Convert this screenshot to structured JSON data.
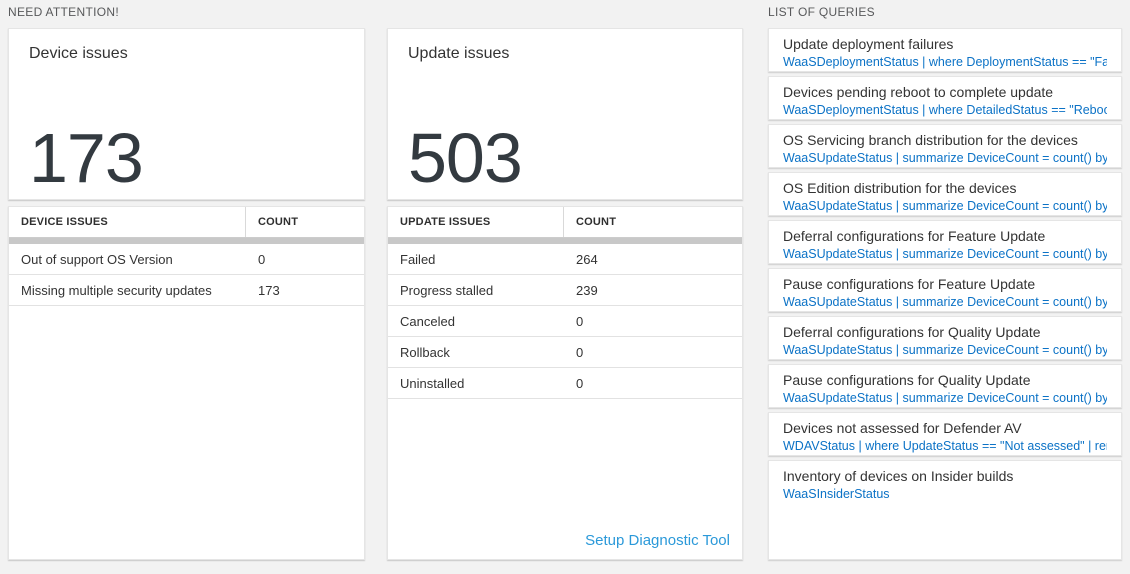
{
  "colors": {
    "page_background": "#f2f2f2",
    "card_background": "#ffffff",
    "query_text_blue": "#0b72c6",
    "link_blue": "#2b99d9",
    "big_number_color": "#333a40",
    "section_header_gray": "#58595b",
    "table_scrollbar_gray": "#c8c8c8"
  },
  "need_attention": {
    "header": "NEED ATTENTION!",
    "device_card": {
      "title": "Device issues",
      "value": "173",
      "table": {
        "columns": [
          "DEVICE ISSUES",
          "COUNT"
        ],
        "rows": [
          [
            "Out of support OS Version",
            "0"
          ],
          [
            "Missing multiple security updates",
            "173"
          ]
        ]
      }
    },
    "update_card": {
      "title": "Update issues",
      "value": "503",
      "table": {
        "columns": [
          "UPDATE ISSUES",
          "COUNT"
        ],
        "rows": [
          [
            "Failed",
            "264"
          ],
          [
            "Progress stalled",
            "239"
          ],
          [
            "Canceled",
            "0"
          ],
          [
            "Rollback",
            "0"
          ],
          [
            "Uninstalled",
            "0"
          ]
        ]
      },
      "footer_link": "Setup Diagnostic Tool"
    }
  },
  "queries": {
    "header": "LIST OF QUERIES",
    "items": [
      {
        "title": "Update deployment failures",
        "query": "WaaSDeploymentStatus | where DeploymentStatus == \"Failed\" |..."
      },
      {
        "title": "Devices pending reboot to complete update",
        "query": "WaaSDeploymentStatus | where DetailedStatus == \"Reboot pend..."
      },
      {
        "title": "OS Servicing branch distribution for the devices",
        "query": "WaaSUpdateStatus | summarize DeviceCount = count() by OSSer..."
      },
      {
        "title": "OS Edition distribution for the devices",
        "query": "WaaSUpdateStatus | summarize DeviceCount = count() by OSEdit..."
      },
      {
        "title": "Deferral configurations for Feature Update",
        "query": "WaaSUpdateStatus | summarize DeviceCount = count() by Featur..."
      },
      {
        "title": "Pause configurations for Feature Update",
        "query": "WaaSUpdateStatus | summarize DeviceCount = count() by Featur..."
      },
      {
        "title": "Deferral configurations for Quality Update",
        "query": "WaaSUpdateStatus | summarize DeviceCount = count() by Qualit..."
      },
      {
        "title": "Pause configurations for Quality Update",
        "query": "WaaSUpdateStatus | summarize DeviceCount = count() by Qualit..."
      },
      {
        "title": "Devices not assessed for Defender AV",
        "query": "WDAVStatus | where UpdateStatus == \"Not assessed\" | render ta..."
      },
      {
        "title": "Inventory of devices on Insider builds",
        "query": "WaaSInsiderStatus"
      }
    ]
  }
}
